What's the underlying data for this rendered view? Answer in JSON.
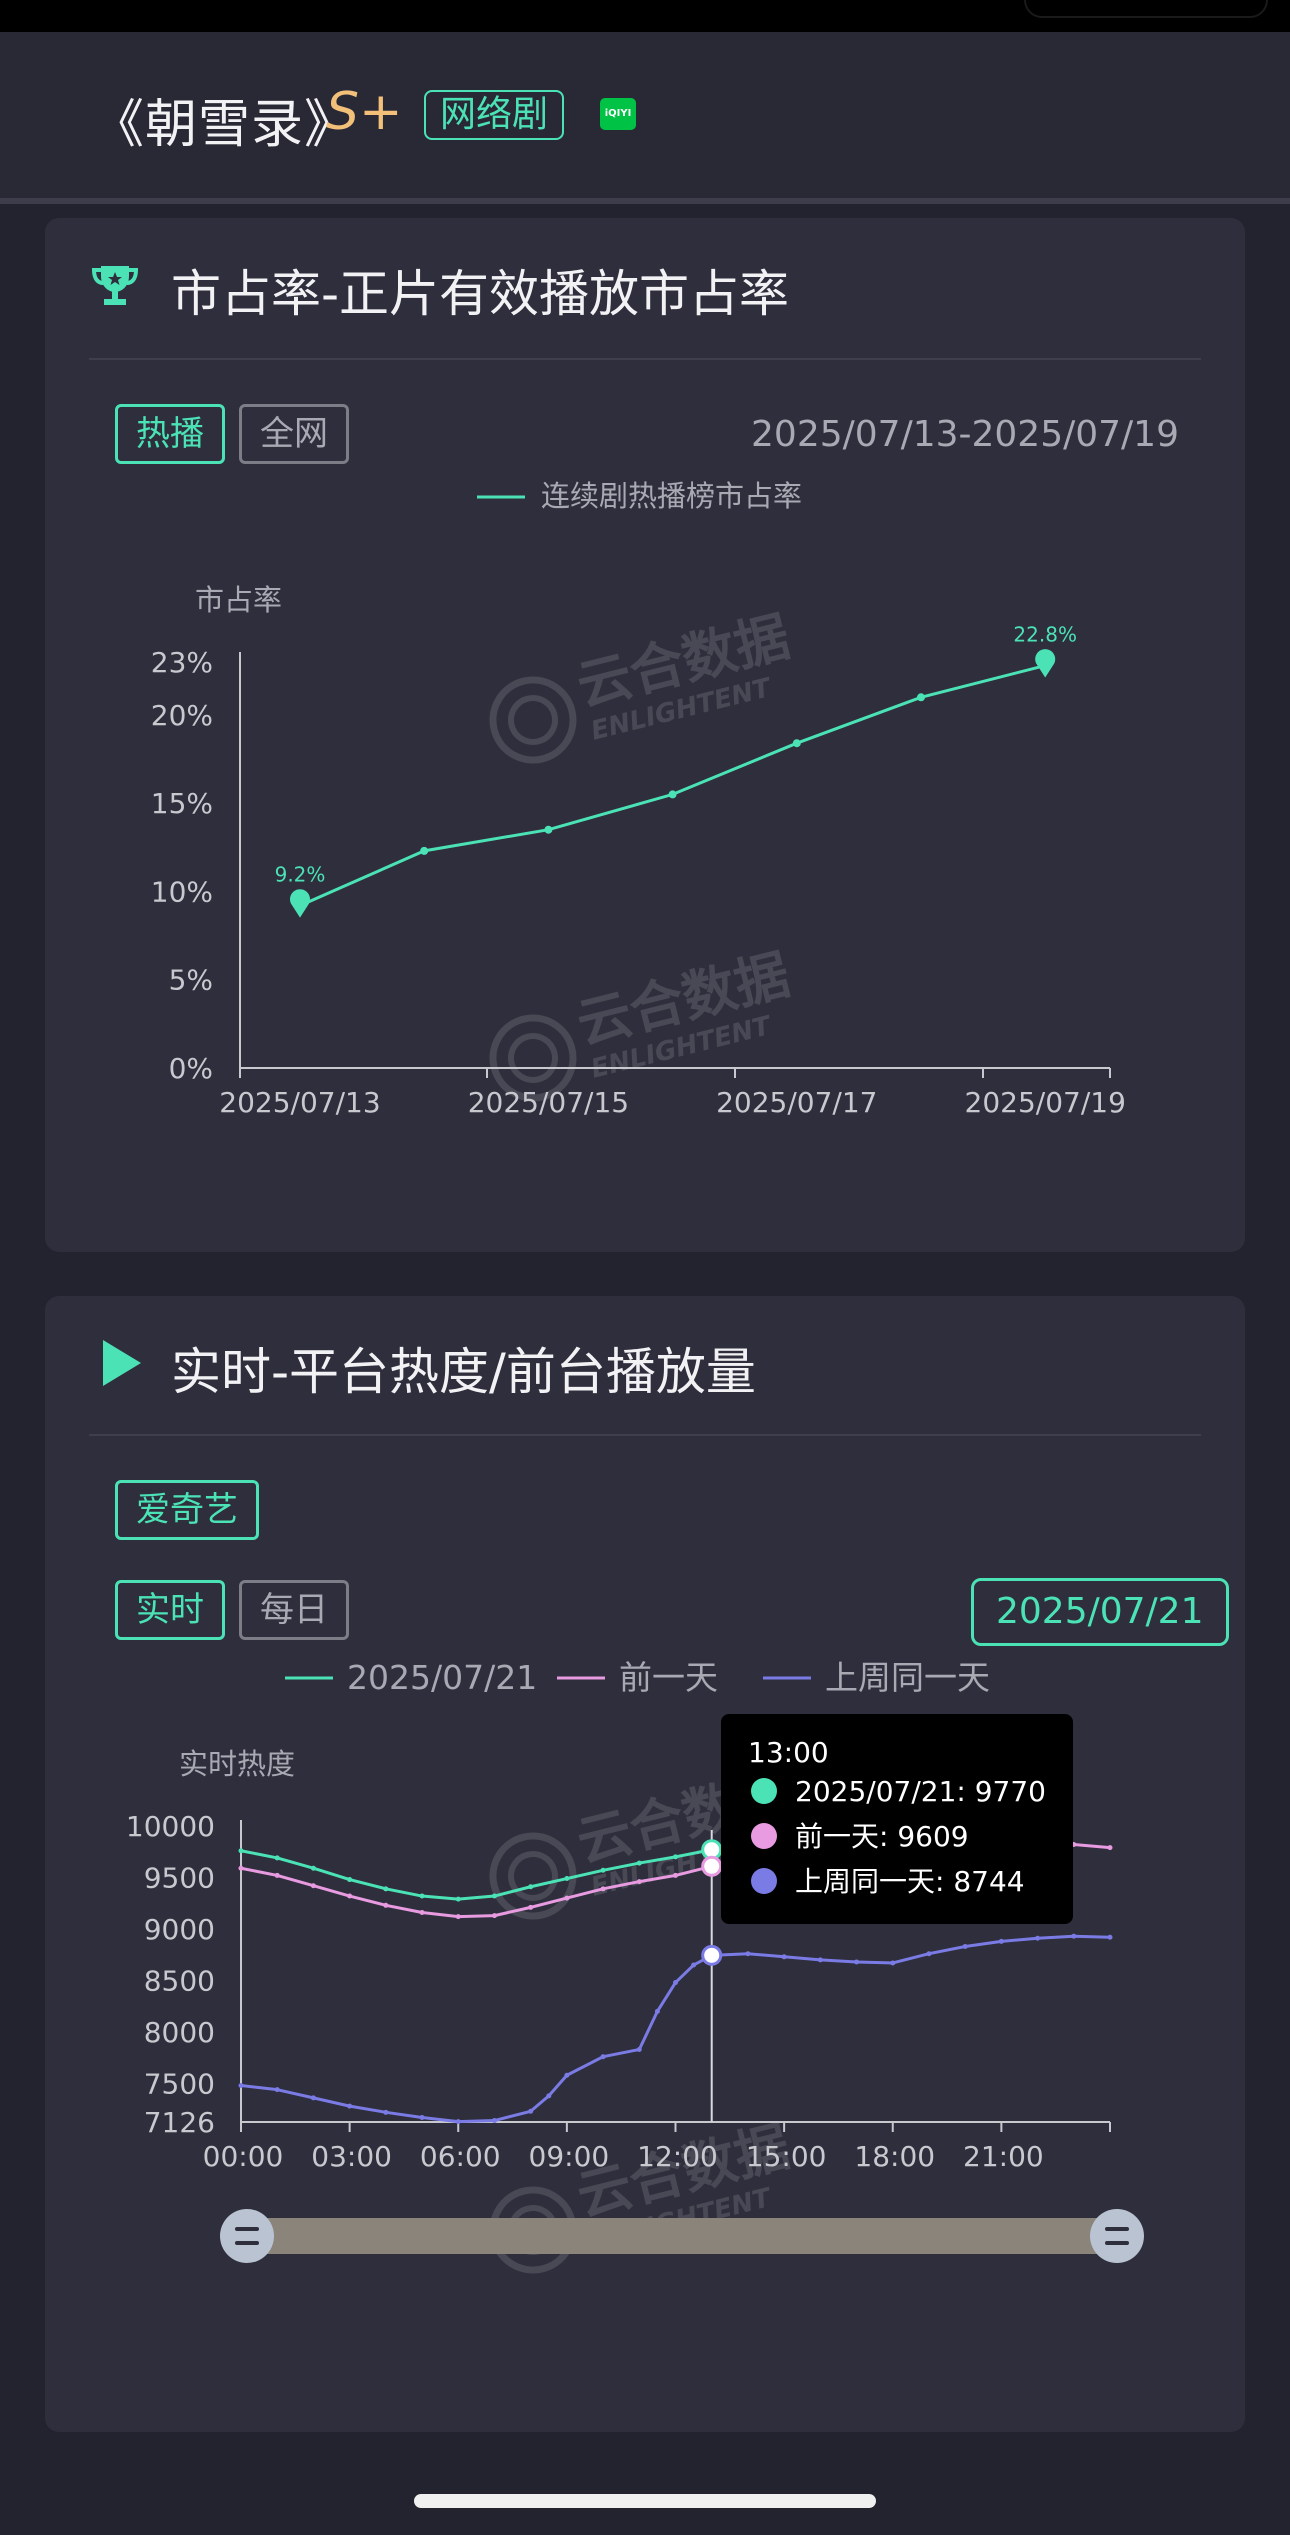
{
  "header": {
    "show_title": "《朝雪录》",
    "rank": "S+",
    "tag": "网络剧",
    "platform_icon": "iqiyi-logo",
    "platform_icon_text": "iQIYI"
  },
  "watermark": {
    "text": "云合数据",
    "sub": "ENLIGHTENT"
  },
  "colors": {
    "accent": "#4be3b6",
    "pink": "#e89be0",
    "purple": "#7b7be6",
    "gold": "#f3c07a"
  },
  "market_share": {
    "title": "市占率-正片有效播放市占率",
    "title_icon": "trophy-icon",
    "tabs": [
      {
        "label": "热播",
        "active": true
      },
      {
        "label": "全网",
        "active": false
      }
    ],
    "date_range": "2025/07/13-2025/07/19",
    "chart_data": {
      "type": "line",
      "legend": "连续剧热播榜市占率",
      "ylabel": "市占率",
      "y_ticks": [
        "0%",
        "5%",
        "10%",
        "15%",
        "20%",
        "23%"
      ],
      "y_tick_values": [
        0,
        5,
        10,
        15,
        20,
        23
      ],
      "ylim": [
        0,
        23
      ],
      "x_ticks": [
        "2025/07/13",
        "2025/07/15",
        "2025/07/17",
        "2025/07/19"
      ],
      "categories": [
        "2025/07/13",
        "2025/07/14",
        "2025/07/15",
        "2025/07/16",
        "2025/07/17",
        "2025/07/18",
        "2025/07/19"
      ],
      "values": [
        9.2,
        12.3,
        13.5,
        15.5,
        18.4,
        21.0,
        22.8
      ],
      "point_labels": [
        {
          "index": 0,
          "text": "9.2%"
        },
        {
          "index": 6,
          "text": "22.8%"
        }
      ],
      "grid": false,
      "legend_position": "top-center"
    }
  },
  "realtime": {
    "title": "实时-平台热度/前台播放量",
    "title_icon": "play-icon",
    "platform_tab": "爱奇艺",
    "tabs": [
      {
        "label": "实时",
        "active": true
      },
      {
        "label": "每日",
        "active": false
      }
    ],
    "date": "2025/07/21",
    "tooltip": {
      "time": "13:00",
      "rows": [
        {
          "label": "2025/07/21: 9770",
          "color": "#4be3b6"
        },
        {
          "label": "前一天: 9609",
          "color": "#e89be0"
        },
        {
          "label": "上周同一天: 8744",
          "color": "#7b7be6"
        }
      ]
    },
    "chart_data": {
      "type": "line",
      "ylabel": "实时热度",
      "y_ticks": [
        "7126",
        "7500",
        "8000",
        "8500",
        "9000",
        "9500",
        "10000"
      ],
      "y_tick_values": [
        7126,
        7500,
        8000,
        8500,
        9000,
        9500,
        10000
      ],
      "ylim": [
        7126,
        10000
      ],
      "x_ticks": [
        "00:00",
        "03:00",
        "06:00",
        "09:00",
        "12:00",
        "15:00",
        "18:00",
        "21:00"
      ],
      "x_tick_values": [
        0,
        3,
        6,
        9,
        12,
        15,
        18,
        21
      ],
      "xlim": [
        0,
        24
      ],
      "legend_position": "top-center",
      "series": [
        {
          "name": "2025/07/21",
          "color": "#4be3b6",
          "x": [
            0,
            1,
            2,
            3,
            4,
            5,
            6,
            7,
            8,
            9,
            10,
            11,
            12,
            13
          ],
          "values": [
            9760,
            9690,
            9590,
            9480,
            9390,
            9320,
            9290,
            9320,
            9410,
            9490,
            9570,
            9640,
            9700,
            9770
          ]
        },
        {
          "name": "前一天",
          "color": "#e89be0",
          "x": [
            0,
            1,
            2,
            3,
            4,
            5,
            6,
            7,
            8,
            9,
            10,
            11,
            12,
            13,
            23,
            24
          ],
          "values": [
            9590,
            9520,
            9420,
            9320,
            9230,
            9160,
            9120,
            9130,
            9210,
            9300,
            9390,
            9460,
            9520,
            9609,
            9820,
            9790
          ]
        },
        {
          "name": "上周同一天",
          "color": "#7b7be6",
          "x": [
            0,
            1,
            2,
            3,
            4,
            5,
            6,
            7,
            8,
            8.5,
            9,
            10,
            11,
            11.5,
            12,
            12.5,
            13,
            14,
            15,
            16,
            17,
            18,
            19,
            20,
            21,
            22,
            23,
            24
          ],
          "values": [
            7480,
            7440,
            7360,
            7280,
            7220,
            7170,
            7130,
            7140,
            7230,
            7380,
            7580,
            7760,
            7830,
            8200,
            8480,
            8650,
            8744,
            8760,
            8730,
            8700,
            8680,
            8670,
            8760,
            8830,
            8880,
            8910,
            8930,
            8920
          ]
        }
      ]
    }
  }
}
